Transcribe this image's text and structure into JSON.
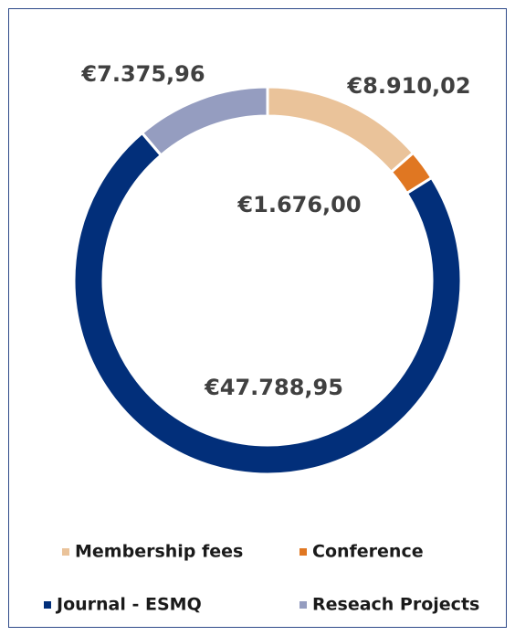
{
  "chart_data": {
    "type": "donut",
    "categories": [
      "Membership fees",
      "Conference",
      "Journal - ESMQ",
      "Reseach Projects"
    ],
    "values": [
      8910.02,
      1676.0,
      47788.95,
      7375.96
    ],
    "value_labels": [
      "€8.910,02",
      "€1.676,00",
      "€47.788,95",
      "€7.375,96"
    ],
    "colors": [
      "#eac39a",
      "#e07722",
      "#022f7a",
      "#959dc0"
    ],
    "legend": "bottom"
  }
}
